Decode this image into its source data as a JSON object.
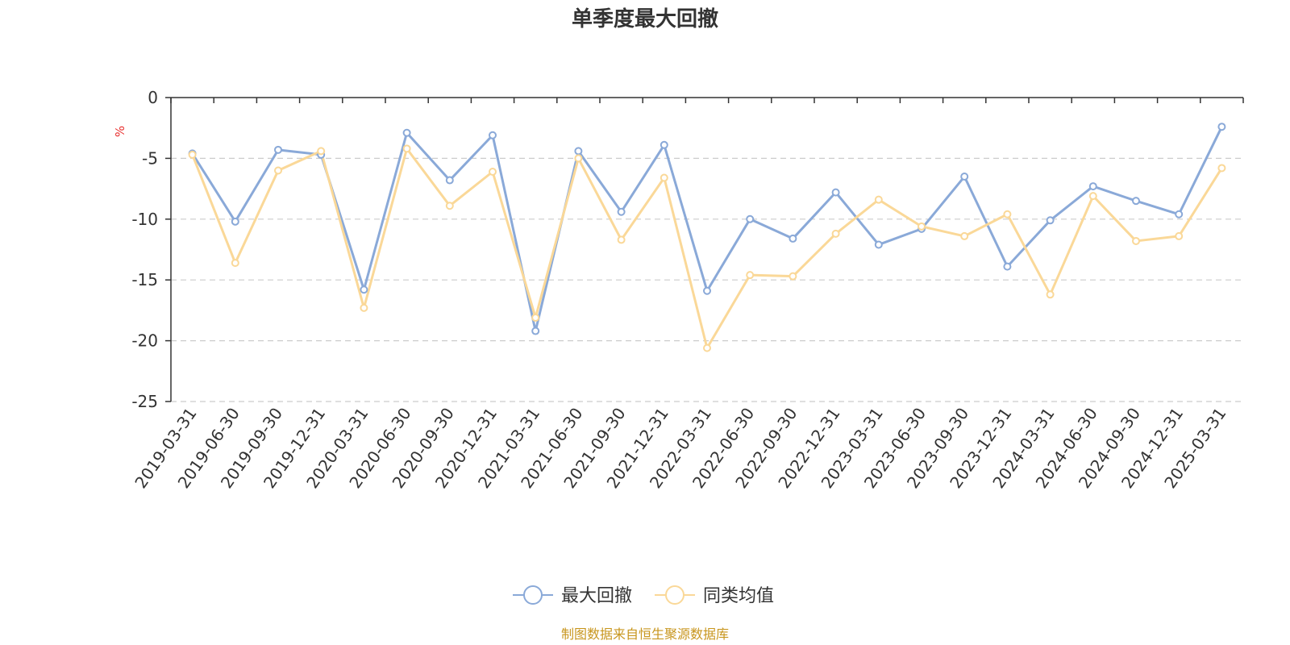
{
  "chart_data": {
    "type": "line",
    "title": "单季度最大回撤",
    "unit": "%",
    "source": "制图数据来自恒生聚源数据库",
    "ylim": [
      -25,
      0
    ],
    "yticks": [
      0,
      -5,
      -10,
      -15,
      -20,
      -25
    ],
    "grid": true,
    "legend_position": "bottom-center",
    "categories": [
      "2019-03-31",
      "2019-06-30",
      "2019-09-30",
      "2019-12-31",
      "2020-03-31",
      "2020-06-30",
      "2020-09-30",
      "2020-12-31",
      "2021-03-31",
      "2021-06-30",
      "2021-09-30",
      "2021-12-31",
      "2022-03-31",
      "2022-06-30",
      "2022-09-30",
      "2022-12-31",
      "2023-03-31",
      "2023-06-30",
      "2023-09-30",
      "2023-12-31",
      "2024-03-31",
      "2024-06-30",
      "2024-09-30",
      "2024-12-31",
      "2025-03-31"
    ],
    "series": [
      {
        "name": "最大回撤",
        "color": "#8aa9d8",
        "values": [
          -4.6,
          -10.2,
          -4.3,
          -4.7,
          -15.8,
          -2.9,
          -6.8,
          -3.1,
          -19.2,
          -4.4,
          -9.4,
          -3.9,
          -15.9,
          -10.0,
          -11.6,
          -7.8,
          -12.1,
          -10.8,
          -6.5,
          -13.9,
          -10.1,
          -7.3,
          -8.5,
          -9.6,
          -2.4
        ]
      },
      {
        "name": "同类均值",
        "color": "#fad898",
        "values": [
          -4.7,
          -13.6,
          -6.0,
          -4.4,
          -17.3,
          -4.2,
          -8.9,
          -6.1,
          -18.1,
          -5.0,
          -11.7,
          -6.6,
          -20.6,
          -14.6,
          -14.7,
          -11.2,
          -8.4,
          -10.6,
          -11.4,
          -9.6,
          -16.2,
          -8.1,
          -11.8,
          -11.4,
          -5.8
        ]
      }
    ]
  }
}
